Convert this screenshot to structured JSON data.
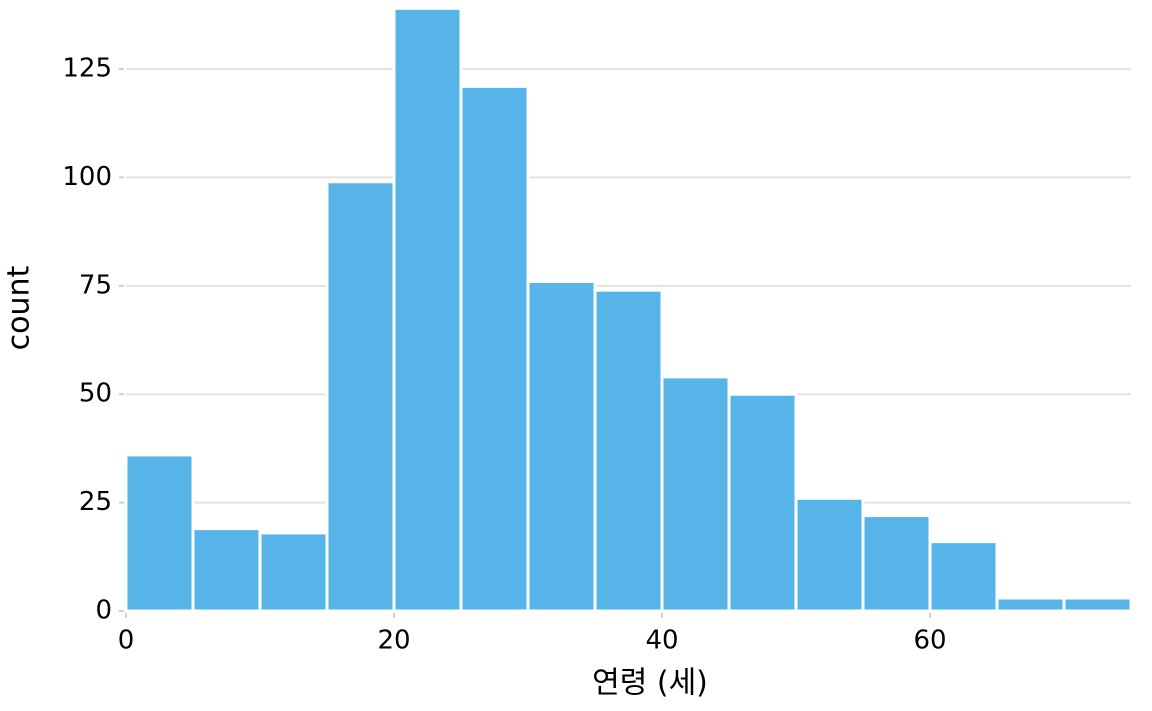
{
  "chart_data": {
    "type": "histogram",
    "x_label": "연령 (세)",
    "y_label": "count",
    "bins": [
      0,
      5,
      10,
      15,
      20,
      25,
      30,
      35,
      40,
      45,
      50,
      55,
      60,
      65,
      70,
      75
    ],
    "values": [
      36,
      19,
      18,
      99,
      139,
      121,
      76,
      74,
      54,
      50,
      26,
      22,
      16,
      3,
      3
    ],
    "color": "#56B4E9",
    "xlim": [
      0,
      75
    ],
    "xticks": [
      0,
      20,
      40,
      60
    ],
    "ylim": [
      0,
      140
    ],
    "yticks": [
      0,
      25,
      50,
      75,
      100,
      125
    ],
    "grid": true
  }
}
